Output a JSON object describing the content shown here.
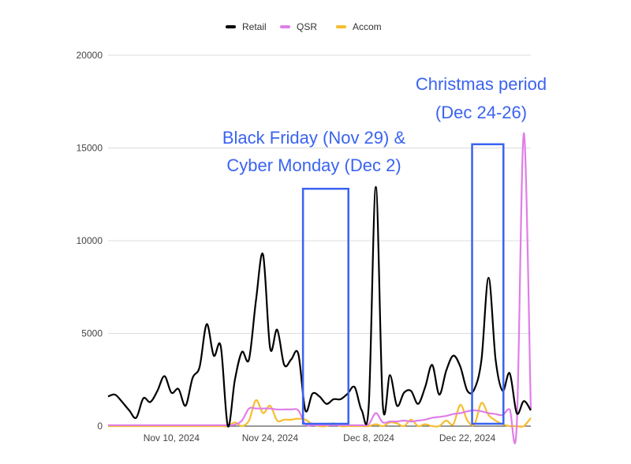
{
  "chart_data": {
    "type": "line",
    "title": "",
    "xlabel": "",
    "ylabel": "",
    "ylim": [
      0,
      20000
    ],
    "yticks": [
      "0",
      "5000",
      "10000",
      "15000",
      "20000"
    ],
    "xticks": [
      {
        "label": "Nov 10, 2024",
        "index": 9
      },
      {
        "label": "Nov 24, 2024",
        "index": 23
      },
      {
        "label": "Dec 8, 2024",
        "index": 37
      },
      {
        "label": "Dec 22, 2024",
        "index": 51
      }
    ],
    "grid": true,
    "legend": "top",
    "x": [
      "Nov 1",
      "Nov 2",
      "Nov 3",
      "Nov 4",
      "Nov 5",
      "Nov 6",
      "Nov 7",
      "Nov 8",
      "Nov 9",
      "Nov 10",
      "Nov 11",
      "Nov 12",
      "Nov 13",
      "Nov 14",
      "Nov 15",
      "Nov 16",
      "Nov 17",
      "Nov 18",
      "Nov 19",
      "Nov 20",
      "Nov 21",
      "Nov 22",
      "Nov 23",
      "Nov 24",
      "Nov 25",
      "Nov 26",
      "Nov 27",
      "Nov 28",
      "Nov 29",
      "Nov 30",
      "Dec 1",
      "Dec 2",
      "Dec 3",
      "Dec 4",
      "Dec 5",
      "Dec 6",
      "Dec 7",
      "Dec 8",
      "Dec 9",
      "Dec 10",
      "Dec 11",
      "Dec 12",
      "Dec 13",
      "Dec 14",
      "Dec 15",
      "Dec 16",
      "Dec 17",
      "Dec 18",
      "Dec 19",
      "Dec 20",
      "Dec 21",
      "Dec 22",
      "Dec 23",
      "Dec 24",
      "Dec 25",
      "Dec 26",
      "Dec 27",
      "Dec 28",
      "Dec 29",
      "Dec 30",
      "Dec 31"
    ],
    "series": [
      {
        "name": "Retail",
        "color": "#000000",
        "values": [
          1600,
          1700,
          1300,
          850,
          450,
          1500,
          1300,
          1900,
          2700,
          1800,
          2000,
          1100,
          2600,
          3200,
          5500,
          3800,
          4300,
          0,
          2500,
          4000,
          3600,
          6800,
          9250,
          4200,
          5200,
          3300,
          3600,
          3900,
          850,
          1750,
          1600,
          1200,
          1450,
          1450,
          1750,
          2100,
          850,
          1100,
          12900,
          1100,
          2750,
          1100,
          1800,
          1900,
          1200,
          2100,
          3300,
          1700,
          3000,
          3800,
          3200,
          1900,
          2000,
          3600,
          8000,
          3600,
          1900,
          2850,
          700,
          1350,
          850
        ]
      },
      {
        "name": "QSR",
        "color": "#e07ee8",
        "values": [
          50,
          50,
          50,
          50,
          50,
          50,
          50,
          50,
          50,
          50,
          50,
          50,
          50,
          50,
          50,
          50,
          50,
          50,
          80,
          300,
          950,
          950,
          950,
          950,
          900,
          900,
          900,
          850,
          100,
          50,
          50,
          50,
          50,
          50,
          50,
          50,
          50,
          100,
          700,
          200,
          250,
          250,
          300,
          250,
          300,
          350,
          450,
          500,
          550,
          650,
          700,
          800,
          850,
          800,
          700,
          650,
          600,
          900,
          0,
          15800,
          900
        ]
      },
      {
        "name": "Accom",
        "color": "#f6bd2f",
        "values": [
          0,
          0,
          0,
          0,
          0,
          0,
          0,
          0,
          0,
          0,
          0,
          0,
          0,
          0,
          0,
          0,
          0,
          0,
          200,
          0,
          300,
          1400,
          700,
          1100,
          300,
          350,
          350,
          400,
          350,
          100,
          0,
          0,
          150,
          0,
          0,
          0,
          0,
          0,
          100,
          0,
          200,
          150,
          0,
          350,
          0,
          100,
          0,
          0,
          300,
          100,
          1150,
          300,
          100,
          1250,
          600,
          300,
          100,
          0,
          0,
          0,
          450
        ]
      }
    ],
    "annotations": [
      {
        "text_lines": [
          "Black Friday (Nov 29) &",
          "Cyber Monday  (Dec 2)"
        ],
        "color": "#3a63f0",
        "box_from": "Nov 29",
        "box_to": "Dec 5",
        "box_top": 12800
      },
      {
        "text_lines": [
          "Christmas period",
          "(Dec 24-26)"
        ],
        "color": "#3a63f0",
        "box_from": "Dec 23",
        "box_to": "Dec 27",
        "box_top": 15200
      }
    ]
  }
}
